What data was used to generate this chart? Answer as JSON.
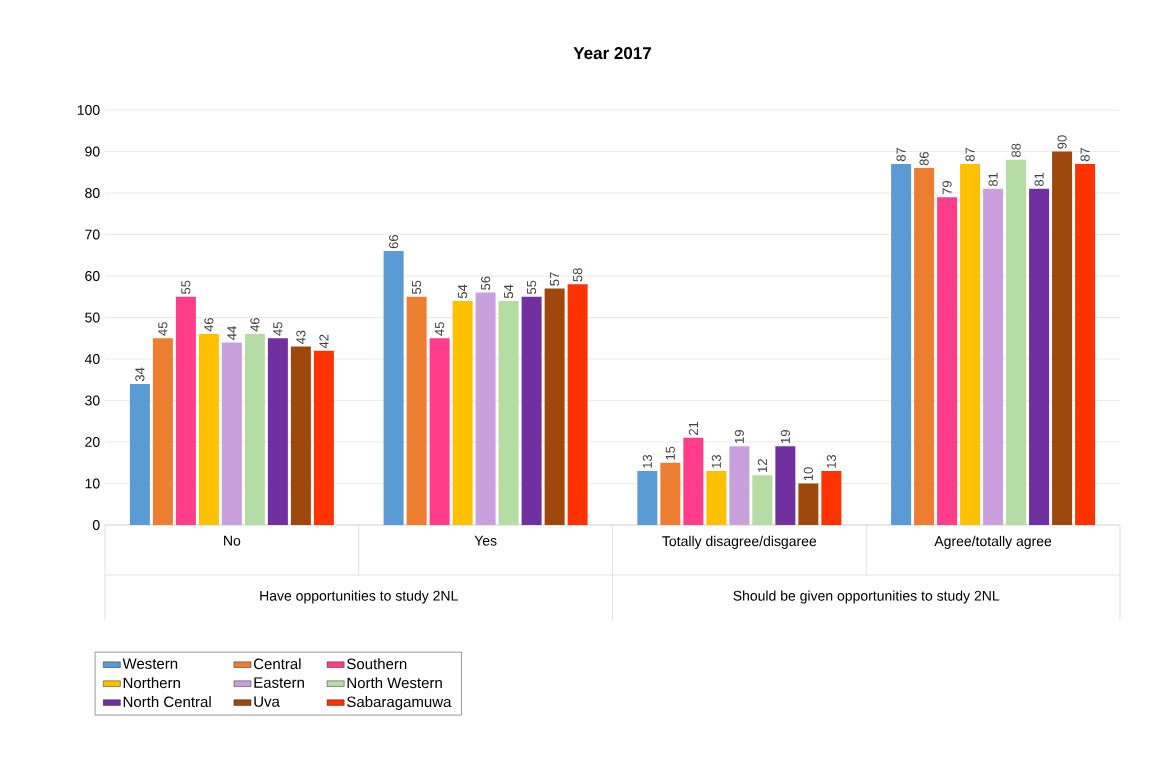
{
  "chart_data": {
    "type": "bar",
    "title": "Year 2017",
    "categories": [
      "No",
      "Yes",
      "Totally disagree/disgaree",
      "Agree/totally agree"
    ],
    "series": [
      {
        "name": "Western",
        "color": "#5b9bd5",
        "values": [
          34,
          66,
          13,
          87
        ]
      },
      {
        "name": "Central",
        "color": "#ed7d31",
        "values": [
          45,
          55,
          15,
          86
        ]
      },
      {
        "name": "Southern",
        "color": "#ff3d8b",
        "values": [
          55,
          45,
          21,
          79
        ]
      },
      {
        "name": "Northern",
        "color": "#ffc000",
        "values": [
          46,
          54,
          13,
          87
        ]
      },
      {
        "name": "Eastern",
        "color": "#c9a0dc",
        "values": [
          44,
          56,
          19,
          81
        ]
      },
      {
        "name": "North Western",
        "color": "#b4dca4",
        "values": [
          46,
          54,
          12,
          88
        ]
      },
      {
        "name": "North Central",
        "color": "#7030a0",
        "values": [
          45,
          55,
          19,
          81
        ]
      },
      {
        "name": "Uva",
        "color": "#9e480e",
        "values": [
          43,
          57,
          10,
          90
        ]
      },
      {
        "name": "Sabaragamuwa",
        "color": "#ff3300",
        "values": [
          42,
          58,
          13,
          87
        ]
      }
    ],
    "annotations": [
      "Have opportunities to study 2NL",
      "Should be given opportunities to  study 2NL"
    ],
    "ylim": [
      0,
      100
    ],
    "yticks": [
      0,
      10,
      20,
      30,
      40,
      50,
      60,
      70,
      80,
      90,
      100
    ],
    "grid": "y",
    "legend": "bottom",
    "data_labels": true
  }
}
